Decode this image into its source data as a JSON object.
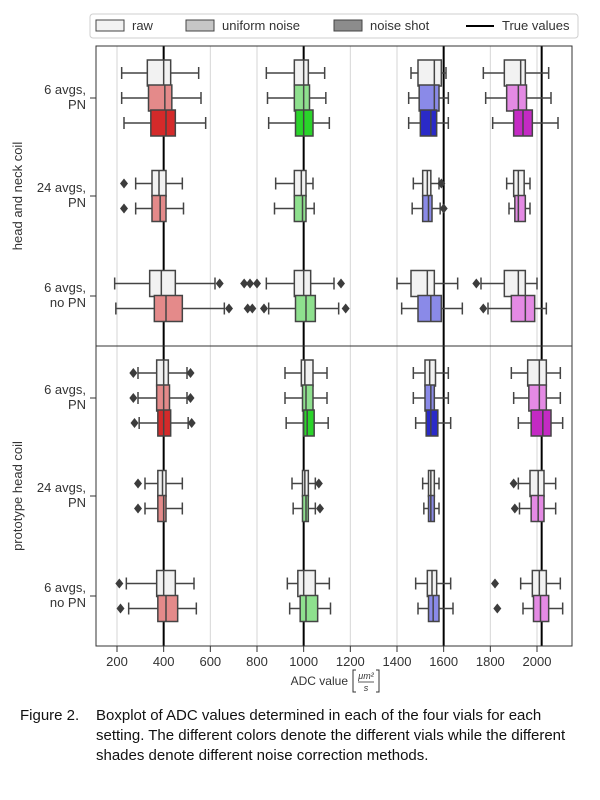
{
  "caption": {
    "label": "Figure 2.",
    "text": "Boxplot of ADC values determined in each of the four vials for each setting. The different colors denote the different vials while the different shades denote different noise correction methods."
  },
  "chart_data": {
    "type": "boxplot",
    "xlabel": "ADC value",
    "xlabel_unit": {
      "numerator": "μm²",
      "denominator": "s"
    },
    "xlim": [
      110,
      2150
    ],
    "xticks": [
      200,
      400,
      600,
      800,
      1000,
      1200,
      1400,
      1600,
      1800,
      2000
    ],
    "grid": true,
    "legend_position": "top",
    "legend": [
      {
        "label": "raw",
        "kind": "box",
        "color": "#f2f2f2"
      },
      {
        "label": "uniform noise",
        "kind": "box",
        "color": "#c6c6c6"
      },
      {
        "label": "noise shot",
        "kind": "box",
        "color": "#8c8c8c"
      },
      {
        "label": "True values",
        "kind": "line",
        "color": "#000000"
      }
    ],
    "true_values": [
      400,
      1000,
      1600,
      2020
    ],
    "vial_colors": {
      "raw": [
        "#f2f2f2",
        "#f2f2f2",
        "#f2f2f2",
        "#f2f2f2"
      ],
      "uniform noise": [
        "#e48a8a",
        "#8ee08e",
        "#8a8ae8",
        "#e48ae4"
      ],
      "noise shot": [
        "#d42a2a",
        "#2ad42a",
        "#2a2ac8",
        "#c42ac4"
      ]
    },
    "panels": [
      {
        "ylabel": "head and neck coil",
        "groups": [
          {
            "label_lines": [
              "6 avgs,",
              "PN"
            ],
            "rows": [
              {
                "shade": "raw",
                "boxes": [
                  {
                    "whislo": 220,
                    "q1": 330,
                    "med": 400,
                    "q3": 430,
                    "whishi": 550,
                    "fliers": []
                  },
                  {
                    "whislo": 840,
                    "q1": 960,
                    "med": 1000,
                    "q3": 1020,
                    "whishi": 1090,
                    "fliers": []
                  },
                  {
                    "whislo": 1460,
                    "q1": 1490,
                    "med": 1560,
                    "q3": 1590,
                    "whishi": 1610,
                    "fliers": []
                  },
                  {
                    "whislo": 1770,
                    "q1": 1860,
                    "med": 1930,
                    "q3": 1950,
                    "whishi": 2050,
                    "fliers": []
                  }
                ]
              },
              {
                "shade": "uniform noise",
                "boxes": [
                  {
                    "whislo": 220,
                    "q1": 335,
                    "med": 405,
                    "q3": 435,
                    "whishi": 560,
                    "fliers": []
                  },
                  {
                    "whislo": 845,
                    "q1": 960,
                    "med": 1000,
                    "q3": 1025,
                    "whishi": 1095,
                    "fliers": []
                  },
                  {
                    "whislo": 1450,
                    "q1": 1495,
                    "med": 1560,
                    "q3": 1580,
                    "whishi": 1620,
                    "fliers": []
                  },
                  {
                    "whislo": 1780,
                    "q1": 1870,
                    "med": 1920,
                    "q3": 1955,
                    "whishi": 2060,
                    "fliers": []
                  }
                ]
              },
              {
                "shade": "noise shot",
                "boxes": [
                  {
                    "whislo": 230,
                    "q1": 345,
                    "med": 410,
                    "q3": 450,
                    "whishi": 580,
                    "fliers": []
                  },
                  {
                    "whislo": 850,
                    "q1": 965,
                    "med": 1000,
                    "q3": 1040,
                    "whishi": 1110,
                    "fliers": []
                  },
                  {
                    "whislo": 1450,
                    "q1": 1500,
                    "med": 1545,
                    "q3": 1570,
                    "whishi": 1620,
                    "fliers": []
                  },
                  {
                    "whislo": 1810,
                    "q1": 1900,
                    "med": 1940,
                    "q3": 1980,
                    "whishi": 2090,
                    "fliers": []
                  }
                ]
              }
            ]
          },
          {
            "label_lines": [
              "24 avgs,",
              "PN"
            ],
            "rows": [
              {
                "shade": "raw",
                "boxes": [
                  {
                    "whislo": 280,
                    "q1": 350,
                    "med": 380,
                    "q3": 410,
                    "whishi": 480,
                    "fliers": [
                      230
                    ]
                  },
                  {
                    "whislo": 880,
                    "q1": 960,
                    "med": 990,
                    "q3": 1010,
                    "whishi": 1040,
                    "fliers": []
                  },
                  {
                    "whislo": 1470,
                    "q1": 1510,
                    "med": 1530,
                    "q3": 1545,
                    "whishi": 1580,
                    "fliers": [
                      1590
                    ]
                  },
                  {
                    "whislo": 1870,
                    "q1": 1900,
                    "med": 1920,
                    "q3": 1945,
                    "whishi": 1970,
                    "fliers": []
                  }
                ]
              },
              {
                "shade": "uniform noise",
                "boxes": [
                  {
                    "whislo": 280,
                    "q1": 350,
                    "med": 385,
                    "q3": 410,
                    "whishi": 485,
                    "fliers": [
                      230
                    ]
                  },
                  {
                    "whislo": 875,
                    "q1": 960,
                    "med": 995,
                    "q3": 1010,
                    "whishi": 1045,
                    "fliers": []
                  },
                  {
                    "whislo": 1465,
                    "q1": 1510,
                    "med": 1535,
                    "q3": 1550,
                    "whishi": 1585,
                    "fliers": [
                      1600
                    ]
                  },
                  {
                    "whislo": 1880,
                    "q1": 1905,
                    "med": 1920,
                    "q3": 1950,
                    "whishi": 1970,
                    "fliers": []
                  }
                ]
              }
            ]
          },
          {
            "label_lines": [
              "6 avgs,",
              "no PN"
            ],
            "rows": [
              {
                "shade": "raw",
                "boxes": [
                  {
                    "whislo": 190,
                    "q1": 340,
                    "med": 390,
                    "q3": 450,
                    "whishi": 620,
                    "fliers": [
                      640,
                      745,
                      800
                    ]
                  },
                  {
                    "whislo": 840,
                    "q1": 960,
                    "med": 1000,
                    "q3": 1030,
                    "whishi": 1130,
                    "fliers": [
                      1160,
                      770
                    ]
                  },
                  {
                    "whislo": 1400,
                    "q1": 1460,
                    "med": 1530,
                    "q3": 1560,
                    "whishi": 1660,
                    "fliers": []
                  },
                  {
                    "whislo": 1760,
                    "q1": 1860,
                    "med": 1920,
                    "q3": 1950,
                    "whishi": 2000,
                    "fliers": [
                      1740
                    ]
                  }
                ]
              },
              {
                "shade": "uniform noise",
                "boxes": [
                  {
                    "whislo": 195,
                    "q1": 360,
                    "med": 410,
                    "q3": 480,
                    "whishi": 660,
                    "fliers": [
                      680,
                      760,
                      830
                    ]
                  },
                  {
                    "whislo": 850,
                    "q1": 965,
                    "med": 1010,
                    "q3": 1050,
                    "whishi": 1150,
                    "fliers": [
                      1180,
                      780
                    ]
                  },
                  {
                    "whislo": 1420,
                    "q1": 1490,
                    "med": 1545,
                    "q3": 1590,
                    "whishi": 1680,
                    "fliers": []
                  },
                  {
                    "whislo": 1790,
                    "q1": 1890,
                    "med": 1950,
                    "q3": 1990,
                    "whishi": 2040,
                    "fliers": [
                      1770
                    ]
                  }
                ]
              }
            ]
          }
        ]
      },
      {
        "ylabel": "prototype head coil",
        "groups": [
          {
            "label_lines": [
              "6 avgs,",
              "PN"
            ],
            "rows": [
              {
                "shade": "raw",
                "boxes": [
                  {
                    "whislo": 290,
                    "q1": 370,
                    "med": 400,
                    "q3": 420,
                    "whishi": 500,
                    "fliers": [
                      270,
                      515
                    ]
                  },
                  {
                    "whislo": 920,
                    "q1": 990,
                    "med": 1005,
                    "q3": 1040,
                    "whishi": 1100,
                    "fliers": []
                  },
                  {
                    "whislo": 1470,
                    "q1": 1520,
                    "med": 1540,
                    "q3": 1565,
                    "whishi": 1620,
                    "fliers": []
                  },
                  {
                    "whislo": 1890,
                    "q1": 1960,
                    "med": 2010,
                    "q3": 2040,
                    "whishi": 2100,
                    "fliers": []
                  }
                ]
              },
              {
                "shade": "uniform noise",
                "boxes": [
                  {
                    "whislo": 290,
                    "q1": 370,
                    "med": 400,
                    "q3": 425,
                    "whishi": 500,
                    "fliers": [
                      270,
                      515
                    ]
                  },
                  {
                    "whislo": 920,
                    "q1": 995,
                    "med": 1010,
                    "q3": 1040,
                    "whishi": 1100,
                    "fliers": []
                  },
                  {
                    "whislo": 1470,
                    "q1": 1520,
                    "med": 1545,
                    "q3": 1560,
                    "whishi": 1620,
                    "fliers": []
                  },
                  {
                    "whislo": 1900,
                    "q1": 1965,
                    "med": 2010,
                    "q3": 2040,
                    "whishi": 2100,
                    "fliers": []
                  }
                ]
              },
              {
                "shade": "noise shot",
                "boxes": [
                  {
                    "whislo": 295,
                    "q1": 375,
                    "med": 400,
                    "q3": 430,
                    "whishi": 505,
                    "fliers": [
                      275,
                      520
                    ]
                  },
                  {
                    "whislo": 925,
                    "q1": 1000,
                    "med": 1015,
                    "q3": 1045,
                    "whishi": 1105,
                    "fliers": []
                  },
                  {
                    "whislo": 1480,
                    "q1": 1525,
                    "med": 1545,
                    "q3": 1575,
                    "whishi": 1630,
                    "fliers": []
                  },
                  {
                    "whislo": 1920,
                    "q1": 1975,
                    "med": 2025,
                    "q3": 2060,
                    "whishi": 2110,
                    "fliers": []
                  }
                ]
              }
            ]
          },
          {
            "label_lines": [
              "24 avgs,",
              "PN"
            ],
            "rows": [
              {
                "shade": "raw",
                "boxes": [
                  {
                    "whislo": 320,
                    "q1": 375,
                    "med": 395,
                    "q3": 410,
                    "whishi": 480,
                    "fliers": [
                      290
                    ]
                  },
                  {
                    "whislo": 950,
                    "q1": 995,
                    "med": 1005,
                    "q3": 1020,
                    "whishi": 1050,
                    "fliers": [
                      1065
                    ]
                  },
                  {
                    "whislo": 1510,
                    "q1": 1535,
                    "med": 1545,
                    "q3": 1560,
                    "whishi": 1580,
                    "fliers": []
                  },
                  {
                    "whislo": 1920,
                    "q1": 1970,
                    "med": 2005,
                    "q3": 2030,
                    "whishi": 2080,
                    "fliers": [
                      1900
                    ]
                  }
                ]
              },
              {
                "shade": "uniform noise",
                "boxes": [
                  {
                    "whislo": 320,
                    "q1": 375,
                    "med": 400,
                    "q3": 410,
                    "whishi": 480,
                    "fliers": [
                      290
                    ]
                  },
                  {
                    "whislo": 955,
                    "q1": 995,
                    "med": 1010,
                    "q3": 1020,
                    "whishi": 1050,
                    "fliers": [
                      1070
                    ]
                  },
                  {
                    "whislo": 1515,
                    "q1": 1535,
                    "med": 1545,
                    "q3": 1560,
                    "whishi": 1580,
                    "fliers": []
                  },
                  {
                    "whislo": 1925,
                    "q1": 1975,
                    "med": 2005,
                    "q3": 2030,
                    "whishi": 2080,
                    "fliers": [
                      1905
                    ]
                  }
                ]
              }
            ]
          },
          {
            "label_lines": [
              "6 avgs,",
              "no PN"
            ],
            "rows": [
              {
                "shade": "raw",
                "boxes": [
                  {
                    "whislo": 240,
                    "q1": 370,
                    "med": 400,
                    "q3": 450,
                    "whishi": 530,
                    "fliers": [
                      210
                    ]
                  },
                  {
                    "whislo": 930,
                    "q1": 975,
                    "med": 1000,
                    "q3": 1050,
                    "whishi": 1110,
                    "fliers": []
                  },
                  {
                    "whislo": 1480,
                    "q1": 1530,
                    "med": 1550,
                    "q3": 1570,
                    "whishi": 1630,
                    "fliers": []
                  },
                  {
                    "whislo": 1930,
                    "q1": 1980,
                    "med": 2010,
                    "q3": 2040,
                    "whishi": 2100,
                    "fliers": [
                      1820
                    ]
                  }
                ]
              },
              {
                "shade": "uniform noise",
                "boxes": [
                  {
                    "whislo": 250,
                    "q1": 375,
                    "med": 410,
                    "q3": 460,
                    "whishi": 540,
                    "fliers": [
                      215
                    ]
                  },
                  {
                    "whislo": 940,
                    "q1": 985,
                    "med": 1010,
                    "q3": 1060,
                    "whishi": 1115,
                    "fliers": []
                  },
                  {
                    "whislo": 1490,
                    "q1": 1535,
                    "med": 1555,
                    "q3": 1580,
                    "whishi": 1640,
                    "fliers": []
                  },
                  {
                    "whislo": 1940,
                    "q1": 1985,
                    "med": 2015,
                    "q3": 2050,
                    "whishi": 2110,
                    "fliers": [
                      1830
                    ]
                  }
                ]
              }
            ]
          }
        ]
      }
    ]
  }
}
